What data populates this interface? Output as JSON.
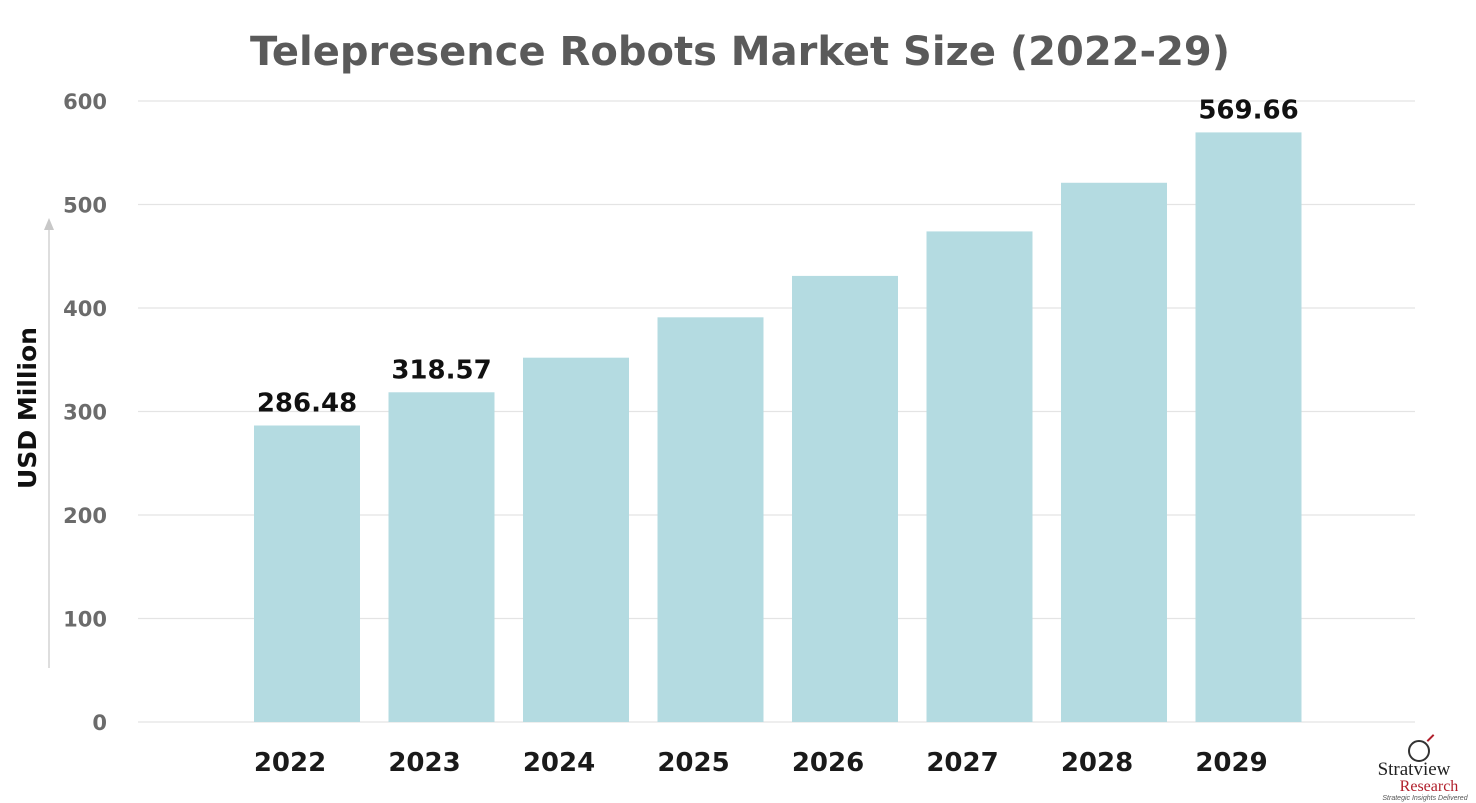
{
  "chart_data": {
    "type": "bar",
    "title": "Telepresence Robots Market Size (2022-29)",
    "xlabel": "",
    "ylabel": "USD Million",
    "categories": [
      "2022",
      "2023",
      "2024",
      "2025",
      "2026",
      "2027",
      "2028",
      "2029"
    ],
    "values": [
      286.48,
      318.57,
      352,
      391,
      431,
      474,
      521,
      569.66
    ],
    "data_labels": [
      "286.48",
      "318.57",
      "",
      "",
      "",
      "",
      "",
      "569.66"
    ],
    "ylim": [
      0,
      600
    ],
    "yticks": [
      0,
      100,
      200,
      300,
      400,
      500,
      600
    ],
    "grid": true,
    "bar_color": "#b4dbe1"
  },
  "branding": {
    "name": "Stratview",
    "sub": "Research",
    "tagline": "Strategic Insights Delivered",
    "accent": "#b01e2a"
  }
}
